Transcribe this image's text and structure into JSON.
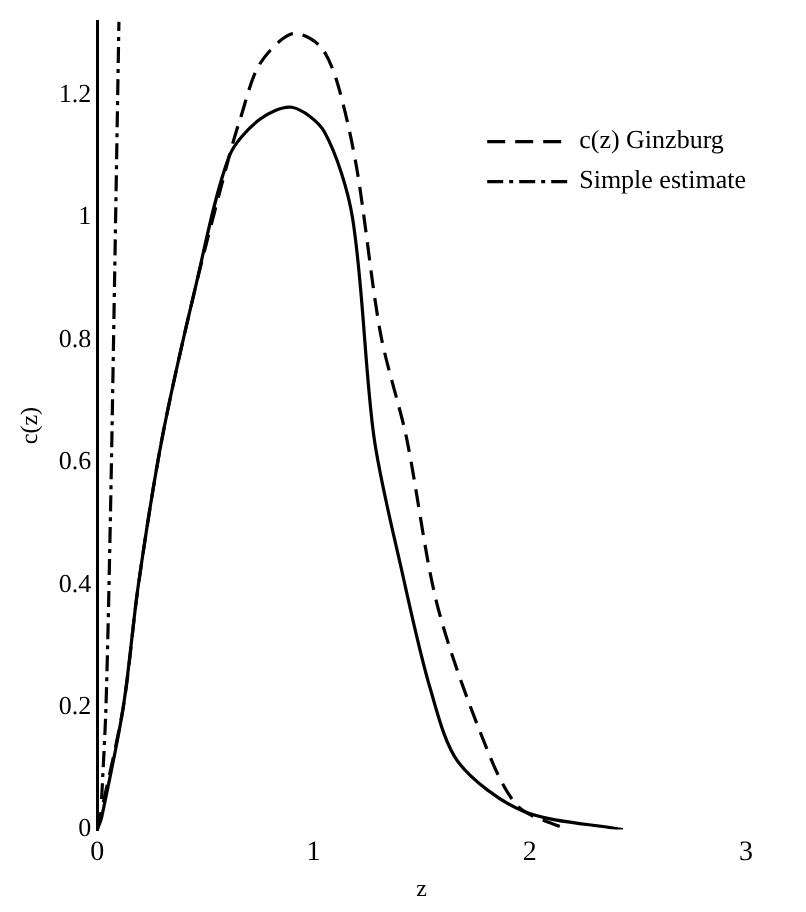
{
  "chart_data": {
    "type": "line",
    "xlabel": "z",
    "ylabel": "c(z)",
    "xlim": [
      0,
      3
    ],
    "xticks": [
      0,
      1,
      2,
      3
    ],
    "ylim": [
      0,
      1.32
    ],
    "yticks": [
      0,
      0.2,
      0.4,
      0.6,
      0.8,
      1.0,
      1.2
    ],
    "grid": false,
    "legend": "top right",
    "marker": "none",
    "series": [
      {
        "name": "c(z) Ginzburg",
        "color": "#000000",
        "line_style": "dashed",
        "x": [
          0,
          0.12,
          0.19,
          0.3,
          0.45,
          0.61,
          0.66,
          0.75,
          0.9,
          1.03,
          1.11,
          1.2,
          1.31,
          1.43,
          1.57,
          1.77,
          1.94,
          2.17
        ],
        "values": [
          0,
          0.2,
          0.4,
          0.64,
          0.88,
          1.1,
          1.16,
          1.25,
          1.3,
          1.28,
          1.22,
          1.08,
          0.81,
          0.64,
          0.37,
          0.16,
          0.04,
          0
        ]
      },
      {
        "name": "Simple estimate",
        "color": "#000000",
        "line_style": "dashdot",
        "x": [
          0.02,
          0.04,
          0.06,
          0.08,
          0.1
        ],
        "values": [
          0.05,
          0.2,
          0.5,
          0.9,
          1.32
        ]
      },
      {
        "color": "#000000",
        "line_style": "solid",
        "x": [
          0,
          0.02,
          0.12,
          0.19,
          0.3,
          0.45,
          0.61,
          0.75,
          0.9,
          1.05,
          1.18,
          1.28,
          1.41,
          1.54,
          1.67,
          1.97,
          2.43
        ],
        "values": [
          0,
          0.02,
          0.2,
          0.4,
          0.64,
          0.88,
          1.1,
          1.16,
          1.18,
          1.14,
          1,
          0.64,
          0.42,
          0.23,
          0.11,
          0.03,
          0
        ]
      }
    ]
  }
}
